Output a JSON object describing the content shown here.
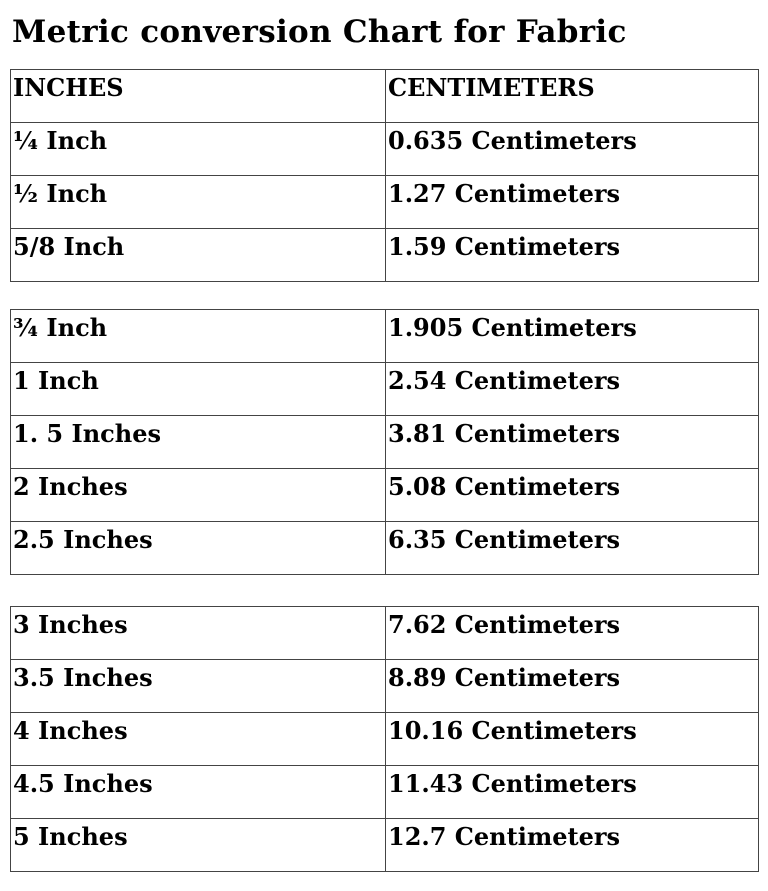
{
  "title": "Metric conversion Chart for Fabric",
  "header": {
    "inches": "INCHES",
    "centimeters": "CENTIMETERS"
  },
  "groups": [
    [
      {
        "inches": "¼  Inch",
        "cm": "0.635 Centimeters"
      },
      {
        "inches": "½ Inch",
        "cm": "1.27  Centimeters"
      },
      {
        "inches": "5/8 Inch",
        "cm": "1.59 Centimeters"
      }
    ],
    [
      {
        "inches": "¾ Inch",
        "cm": "1.905 Centimeters"
      },
      {
        "inches": "1 Inch",
        "cm": "2.54 Centimeters"
      },
      {
        "inches": "1. 5 Inches",
        "cm": "3.81 Centimeters"
      },
      {
        "inches": "2 Inches",
        "cm": "5.08 Centimeters"
      },
      {
        "inches": "2.5 Inches",
        "cm": "6.35 Centimeters"
      }
    ],
    [
      {
        "inches": "3 Inches",
        "cm": "7.62 Centimeters"
      },
      {
        "inches": "3.5 Inches",
        "cm": "8.89 Centimeters"
      },
      {
        "inches": "4 Inches",
        "cm": "10.16 Centimeters"
      },
      {
        "inches": "4.5 Inches",
        "cm": "11.43 Centimeters"
      },
      {
        "inches": "5 Inches",
        "cm": "12.7 Centimeters"
      }
    ]
  ]
}
